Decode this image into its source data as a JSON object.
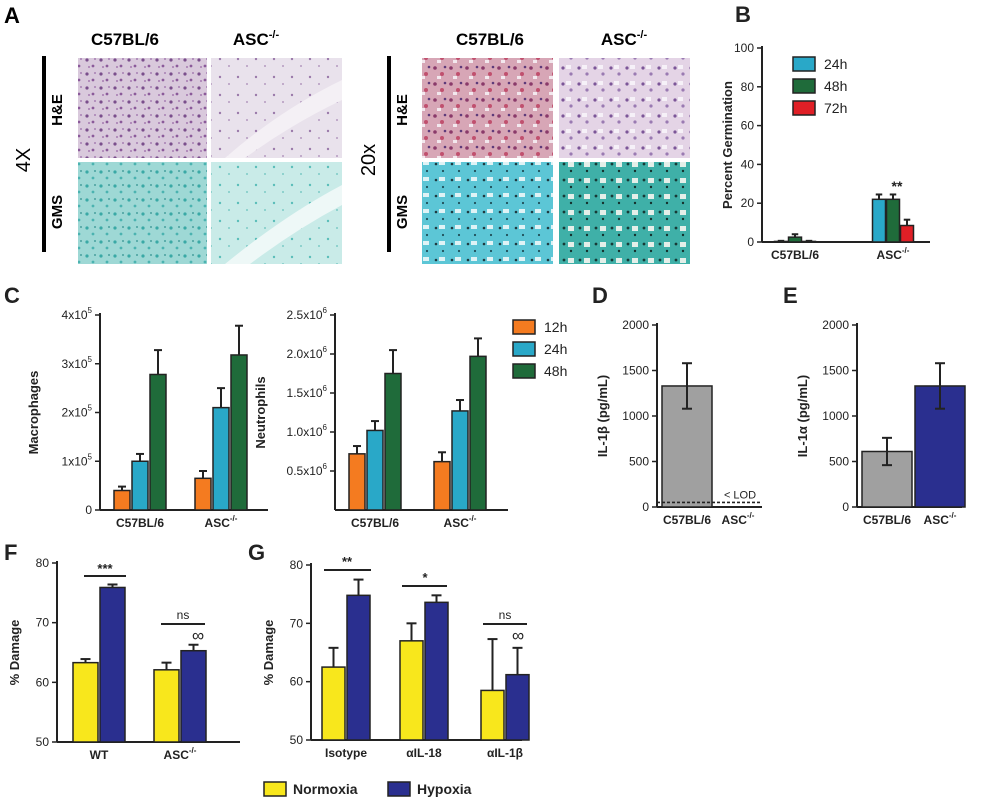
{
  "colors": {
    "orange": "#f47b20",
    "teal": "#29a8c8",
    "green": "#1f6b3a",
    "red": "#e01f26",
    "gray": "#a0a0a0",
    "navy": "#2a2f8f",
    "yellow": "#f8e71c"
  },
  "panel_a": {
    "letter": "A",
    "col_left_1": "C57BL/6",
    "col_left_2": "ASC",
    "mag_left": "4X",
    "col_right_1": "C57BL/6",
    "col_right_2": "ASC",
    "mag_right": "20x",
    "superscript": "-/-",
    "row_he": "H&E",
    "row_gms": "GMS"
  },
  "chart_data": [
    {
      "id": "B",
      "type": "bar",
      "panel_letter": "B",
      "categories": [
        "C57BL/6",
        "ASC"
      ],
      "category_superscripts": [
        "",
        "-/-"
      ],
      "series": [
        {
          "name": "24h",
          "color_key": "teal",
          "values": [
            0.3,
            22.0
          ],
          "errors": [
            0.3,
            2.5
          ]
        },
        {
          "name": "48h",
          "color_key": "green",
          "values": [
            2.5,
            22.0
          ],
          "errors": [
            1.5,
            2.5
          ]
        },
        {
          "name": "72h",
          "color_key": "red",
          "values": [
            0.3,
            8.5
          ],
          "errors": [
            0.3,
            3.0
          ]
        }
      ],
      "ylabel": "Percent Germination",
      "ylim": [
        0,
        100
      ],
      "yticks": [
        "0",
        "20",
        "40",
        "60",
        "80",
        "100"
      ],
      "annotation": "**",
      "legend": "top-right"
    },
    {
      "id": "C1",
      "type": "bar",
      "panel_letter": "C",
      "categories": [
        "C57BL/6",
        "ASC"
      ],
      "category_superscripts": [
        "",
        "-/-"
      ],
      "series": [
        {
          "name": "12h",
          "color_key": "orange",
          "values": [
            40000,
            65000
          ],
          "errors": [
            8000,
            15000
          ]
        },
        {
          "name": "24h",
          "color_key": "teal",
          "values": [
            100000,
            210000
          ],
          "errors": [
            15000,
            40000
          ]
        },
        {
          "name": "48h",
          "color_key": "green",
          "values": [
            278000,
            318000
          ],
          "errors": [
            50000,
            60000
          ]
        }
      ],
      "ylabel": "Macrophages",
      "ylim": [
        0,
        400000
      ],
      "yticks": [
        "0",
        "1x10",
        "2x10",
        "3x10",
        "4x10"
      ],
      "ytick_exponent": "5"
    },
    {
      "id": "C2",
      "type": "bar",
      "categories": [
        "C57BL/6",
        "ASC"
      ],
      "category_superscripts": [
        "",
        "-/-"
      ],
      "series": [
        {
          "name": "12h",
          "color_key": "orange",
          "values": [
            720000,
            620000
          ],
          "errors": [
            100000,
            120000
          ]
        },
        {
          "name": "24h",
          "color_key": "teal",
          "values": [
            1020000,
            1270000
          ],
          "errors": [
            120000,
            140000
          ]
        },
        {
          "name": "48h",
          "color_key": "green",
          "values": [
            1750000,
            1970000
          ],
          "errors": [
            300000,
            230000
          ]
        }
      ],
      "ylabel": "Neutrophils",
      "ylim": [
        0,
        2500000
      ],
      "yticks": [
        "0.5x10",
        "1.0x10",
        "1.5x10",
        "2.0x10",
        "2.5x10"
      ],
      "ytick_exponent": "6",
      "legend": "right"
    },
    {
      "id": "D",
      "type": "bar",
      "panel_letter": "D",
      "categories": [
        "C57BL/6",
        "ASC"
      ],
      "category_superscripts": [
        "",
        "-/-"
      ],
      "series": [
        {
          "color_key": "gray",
          "values": [
            1330,
            0
          ],
          "errors": [
            250,
            0
          ]
        }
      ],
      "ylabel": "IL-1β (pg/mL)",
      "ylim": [
        0,
        2000
      ],
      "yticks": [
        "0",
        "500",
        "1000",
        "1500",
        "2000"
      ],
      "lod_label": "< LOD",
      "lod_value": 50
    },
    {
      "id": "E",
      "type": "bar",
      "panel_letter": "E",
      "categories": [
        "C57BL/6",
        "ASC"
      ],
      "category_superscripts": [
        "",
        "-/-"
      ],
      "bar_color_keys": [
        "gray",
        "navy"
      ],
      "series": [
        {
          "values": [
            610,
            1330
          ],
          "errors": [
            150,
            250
          ]
        }
      ],
      "ylabel": "IL-1α (pg/mL)",
      "ylim": [
        0,
        2000
      ],
      "yticks": [
        "0",
        "500",
        "1000",
        "1500",
        "2000"
      ]
    },
    {
      "id": "F",
      "type": "bar",
      "panel_letter": "F",
      "categories": [
        "WT",
        "ASC"
      ],
      "category_superscripts": [
        "",
        "-/-"
      ],
      "series": [
        {
          "name": "Normoxia",
          "color_key": "yellow",
          "values": [
            63.3,
            62.1
          ],
          "errors": [
            0.6,
            1.2
          ]
        },
        {
          "name": "Hypoxia",
          "color_key": "navy",
          "values": [
            75.9,
            65.3
          ],
          "errors": [
            0.5,
            1.0
          ]
        }
      ],
      "ylabel": "% Damage",
      "ylim": [
        50,
        80
      ],
      "yticks": [
        "50",
        "60",
        "70",
        "80"
      ],
      "annotations": [
        "***",
        "ns"
      ],
      "symbol": "∞"
    },
    {
      "id": "G",
      "type": "bar",
      "panel_letter": "G",
      "categories": [
        "Isotype",
        "αIL-18",
        "αIL-1β"
      ],
      "series": [
        {
          "name": "Normoxia",
          "color_key": "yellow",
          "values": [
            62.5,
            67.0,
            58.5
          ],
          "errors": [
            3.3,
            3.0,
            8.8
          ]
        },
        {
          "name": "Hypoxia",
          "color_key": "navy",
          "values": [
            74.8,
            73.6,
            61.2
          ],
          "errors": [
            2.7,
            1.2,
            4.6
          ]
        }
      ],
      "ylabel": "% Damage",
      "ylim": [
        50,
        80
      ],
      "yticks": [
        "50",
        "60",
        "70",
        "80"
      ],
      "annotations": [
        "**",
        "*",
        "ns"
      ],
      "symbol": "∞",
      "legend": "bottom"
    }
  ]
}
